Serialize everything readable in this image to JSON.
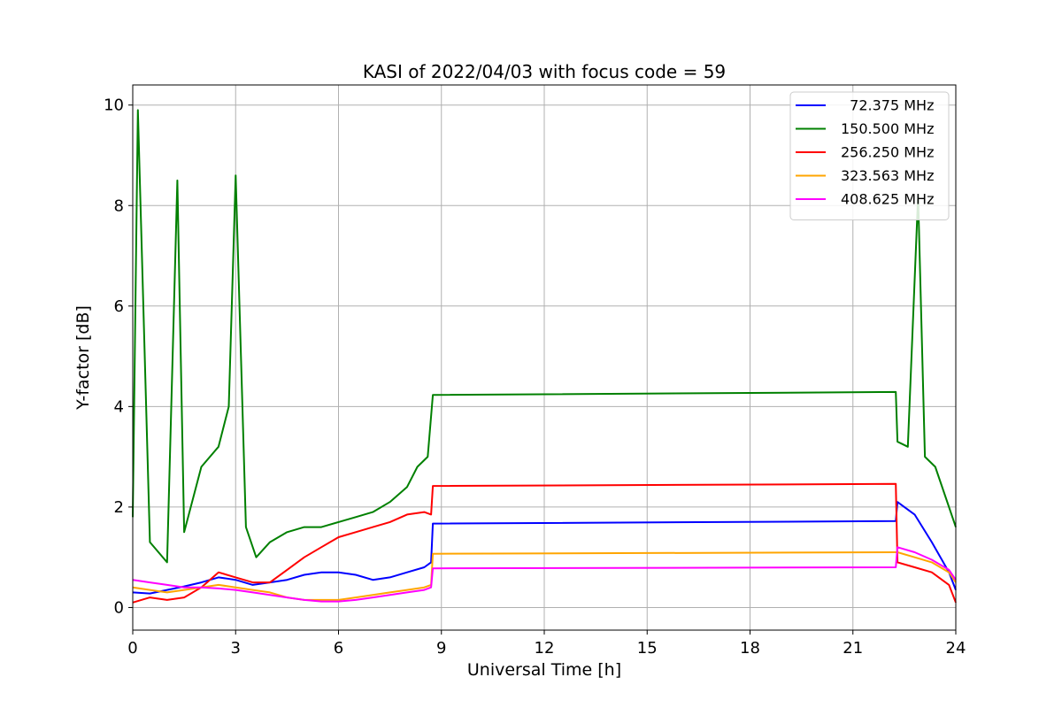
{
  "chart_data": {
    "type": "line",
    "title": "KASI of 2022/04/03 with focus code = 59",
    "xlabel": "Universal Time [h]",
    "ylabel": "Y-factor [dB]",
    "xlim": [
      0,
      24
    ],
    "ylim": [
      -0.45,
      10.4
    ],
    "xticks": [
      0,
      3,
      6,
      9,
      12,
      15,
      18,
      21,
      24
    ],
    "yticks": [
      0,
      2,
      4,
      6,
      8,
      10
    ],
    "grid": true,
    "legend_position": "top-right",
    "series": [
      {
        "name": "  72.375 MHz",
        "color": "#0000ff",
        "x": [
          0,
          0.5,
          1,
          1.5,
          2,
          2.5,
          3,
          3.5,
          4,
          4.5,
          5,
          5.5,
          6,
          6.5,
          7,
          7.5,
          8,
          8.5,
          8.7,
          8.75,
          22.25,
          22.3,
          22.8,
          23.3,
          23.8,
          24
        ],
        "y": [
          0.3,
          0.28,
          0.35,
          0.42,
          0.5,
          0.6,
          0.55,
          0.45,
          0.5,
          0.55,
          0.65,
          0.7,
          0.7,
          0.65,
          0.55,
          0.6,
          0.7,
          0.8,
          0.9,
          1.67,
          1.72,
          2.1,
          1.85,
          1.3,
          0.7,
          0.35
        ]
      },
      {
        "name": "150.500 MHz",
        "color": "#008000",
        "x": [
          0,
          0.15,
          0.5,
          1,
          1.3,
          1.5,
          2,
          2.5,
          2.8,
          3,
          3.3,
          3.6,
          4,
          4.5,
          5,
          5.5,
          6,
          6.5,
          7,
          7.5,
          8,
          8.3,
          8.6,
          8.75,
          22.25,
          22.3,
          22.6,
          22.9,
          23.1,
          23.4,
          23.7,
          24
        ],
        "y": [
          1.8,
          9.9,
          1.3,
          0.9,
          8.5,
          1.5,
          2.8,
          3.2,
          4.0,
          8.6,
          1.6,
          1.0,
          1.3,
          1.5,
          1.6,
          1.6,
          1.7,
          1.8,
          1.9,
          2.1,
          2.4,
          2.8,
          3.0,
          4.23,
          4.29,
          3.3,
          3.2,
          8.2,
          3.0,
          2.8,
          2.2,
          1.6
        ]
      },
      {
        "name": "256.250 MHz",
        "color": "#ff0000",
        "x": [
          0,
          0.5,
          1,
          1.5,
          2,
          2.5,
          3,
          3.5,
          4,
          4.5,
          5,
          5.5,
          6,
          6.5,
          7,
          7.5,
          8,
          8.5,
          8.7,
          8.75,
          22.25,
          22.3,
          22.8,
          23.3,
          23.8,
          24
        ],
        "y": [
          0.1,
          0.2,
          0.15,
          0.2,
          0.4,
          0.7,
          0.6,
          0.5,
          0.5,
          0.75,
          1.0,
          1.2,
          1.4,
          1.5,
          1.6,
          1.7,
          1.85,
          1.9,
          1.85,
          2.42,
          2.46,
          0.9,
          0.8,
          0.7,
          0.45,
          0.1
        ]
      },
      {
        "name": "323.563 MHz",
        "color": "#ffa500",
        "x": [
          0,
          0.5,
          1,
          1.5,
          2,
          2.5,
          3,
          3.5,
          4,
          4.5,
          5,
          5.5,
          6,
          6.5,
          7,
          7.5,
          8,
          8.5,
          8.7,
          8.75,
          22.25,
          22.3,
          22.8,
          23.3,
          23.8,
          24
        ],
        "y": [
          0.4,
          0.35,
          0.3,
          0.35,
          0.4,
          0.45,
          0.4,
          0.35,
          0.3,
          0.2,
          0.15,
          0.15,
          0.15,
          0.2,
          0.25,
          0.3,
          0.35,
          0.4,
          0.45,
          1.07,
          1.1,
          1.1,
          1.0,
          0.9,
          0.7,
          0.5
        ]
      },
      {
        "name": "408.625 MHz",
        "color": "#ff00ff",
        "x": [
          0,
          0.5,
          1,
          1.5,
          2,
          2.5,
          3,
          3.5,
          4,
          4.5,
          5,
          5.5,
          6,
          6.5,
          7,
          7.5,
          8,
          8.5,
          8.7,
          8.75,
          22.25,
          22.3,
          22.8,
          23.3,
          23.8,
          24
        ],
        "y": [
          0.55,
          0.5,
          0.45,
          0.4,
          0.4,
          0.38,
          0.35,
          0.3,
          0.25,
          0.2,
          0.15,
          0.12,
          0.12,
          0.15,
          0.2,
          0.25,
          0.3,
          0.35,
          0.4,
          0.78,
          0.8,
          1.2,
          1.1,
          0.95,
          0.75,
          0.55
        ]
      }
    ]
  }
}
